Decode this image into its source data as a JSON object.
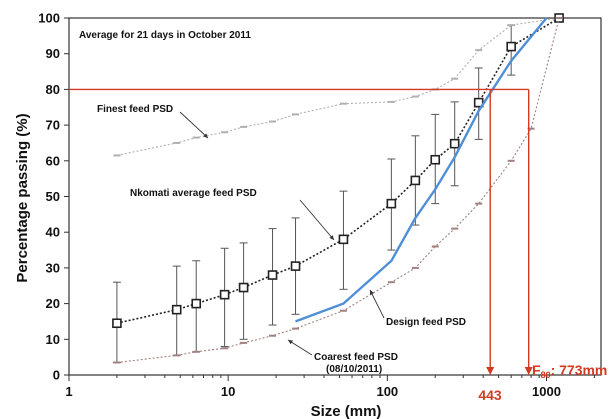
{
  "chart_data": {
    "type": "line",
    "x_scale": "log",
    "xlim": [
      1,
      2200
    ],
    "ylim": [
      0,
      100
    ],
    "x_ticks": [
      1,
      10,
      100,
      1000
    ],
    "x_tick_labels": [
      "1",
      "10",
      "100",
      "1000"
    ],
    "y_ticks": [
      0,
      10,
      20,
      30,
      40,
      50,
      60,
      70,
      80,
      90,
      100
    ],
    "y_tick_labels": [
      "0",
      "10",
      "20",
      "30",
      "40",
      "50",
      "60",
      "70",
      "80",
      "90",
      "100"
    ],
    "xlabel": "Size (mm)",
    "ylabel": "Percentage passing (%)",
    "title": "Average for 21 days in October 2011",
    "grid": false,
    "series": [
      {
        "name": "Nkomati average feed PSD",
        "color": "#222222",
        "style": "dotted-with-square-markers",
        "x": [
          2,
          4.75,
          6.3,
          9.5,
          12.5,
          19,
          26.5,
          53,
          106,
          150,
          200,
          265,
          375,
          600,
          1200
        ],
        "y": [
          14.5,
          18.3,
          20,
          22.5,
          24.5,
          28,
          30.5,
          38,
          48,
          54.5,
          60.3,
          64.8,
          76.3,
          92,
          100
        ],
        "error_low": [
          3.5,
          5.5,
          6.5,
          8,
          10,
          14,
          17,
          24,
          35,
          42,
          48,
          53,
          66,
          84,
          100
        ],
        "error_high": [
          26,
          30.5,
          32,
          35.5,
          37,
          41,
          44,
          51.5,
          60.5,
          67,
          73,
          76.5,
          86,
          98,
          100
        ]
      },
      {
        "name": "Finest feed PSD",
        "color": "#b0b0b0",
        "style": "dotted-with-dash-markers",
        "x": [
          2,
          4.75,
          6.3,
          9.5,
          12.5,
          19,
          26.5,
          53,
          106,
          150,
          200,
          265,
          375,
          600,
          1200
        ],
        "y": [
          61.5,
          65,
          66.5,
          68,
          69.5,
          71,
          73,
          76,
          76.5,
          78,
          80,
          83,
          91,
          98,
          100
        ]
      },
      {
        "name": "Coarest feed PSD (08/10/2011)",
        "color": "#a08080",
        "style": "dotted-with-dash-markers",
        "x": [
          2,
          4.75,
          6.3,
          9.5,
          12.5,
          19,
          26.5,
          53,
          106,
          150,
          200,
          265,
          375,
          600,
          800,
          1200
        ],
        "y": [
          3.5,
          5.5,
          6.5,
          7.5,
          9,
          11,
          13,
          18,
          26,
          30,
          36,
          41,
          48,
          60,
          69,
          100
        ]
      },
      {
        "name": "Design feed PSD",
        "color": "#4f8fd8",
        "style": "solid",
        "x": [
          26.5,
          53,
          106,
          150,
          200,
          265,
          375,
          600,
          1000
        ],
        "y": [
          15,
          20,
          32,
          44,
          52,
          61,
          74,
          88,
          100
        ]
      }
    ],
    "reference_lines": {
      "y80": 80,
      "x_design_f80": 443,
      "x_plant_f80": 773,
      "color": "#d23a22"
    }
  },
  "annotations": {
    "title": "Average for 21 days in October 2011",
    "finest": "Finest feed PSD",
    "nkomati": "Nkomati average feed PSD",
    "design": "Design feed PSD",
    "coarse_line1": "Coarest feed PSD",
    "coarse_line2": "(08/10/2011)",
    "x443": "443",
    "f80_prefix": "F",
    "f80_sub": "80",
    "f80_value": ": 773mm"
  }
}
